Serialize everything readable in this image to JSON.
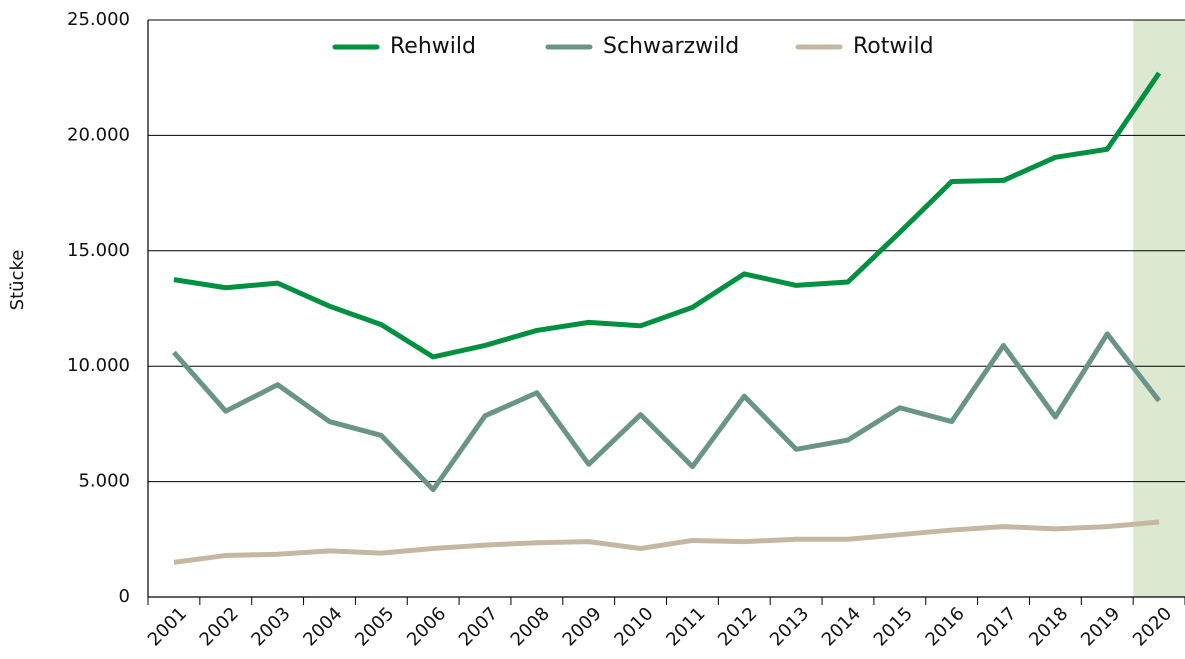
{
  "chart_data": {
    "type": "line",
    "y_label": "Stücke",
    "categories": [
      "2001",
      "2002",
      "2003",
      "2004",
      "2005",
      "2006",
      "2007",
      "2008",
      "2009",
      "2010",
      "2011",
      "2012",
      "2013",
      "2014",
      "2015",
      "2016",
      "2017",
      "2018",
      "2019",
      "2020"
    ],
    "series": [
      {
        "name": "Rehwild",
        "color": "#009140",
        "values": [
          13750,
          13400,
          13600,
          12600,
          11800,
          10400,
          10900,
          11550,
          11900,
          11750,
          12550,
          14000,
          13500,
          13650,
          15800,
          18000,
          18050,
          19050,
          19400,
          22700
        ]
      },
      {
        "name": "Schwarzwild",
        "color": "#6a9488",
        "values": [
          10600,
          8050,
          9200,
          7600,
          7000,
          4650,
          7850,
          8850,
          5750,
          7900,
          5650,
          8700,
          6400,
          6800,
          8200,
          7600,
          10900,
          7800,
          11400,
          8500
        ]
      },
      {
        "name": "Rotwild",
        "color": "#c5b8a3",
        "values": [
          1500,
          1800,
          1850,
          2000,
          1900,
          2100,
          2250,
          2350,
          2400,
          2100,
          2450,
          2400,
          2500,
          2500,
          2700,
          2900,
          3050,
          2950,
          3050,
          3250
        ]
      }
    ],
    "ylim": [
      0,
      25000
    ],
    "yticks": [
      0,
      {
        "value": 5000,
        "label": "5.000"
      },
      {
        "value": 10000,
        "label": "10.000"
      },
      {
        "value": 15000,
        "label": "15.000"
      },
      {
        "value": 20000,
        "label": "20.000"
      },
      {
        "value": 25000,
        "label": "25.000"
      }
    ],
    "grid": true,
    "legend": "top",
    "highlight": "2020",
    "highlight_color": "#dce9d0"
  }
}
